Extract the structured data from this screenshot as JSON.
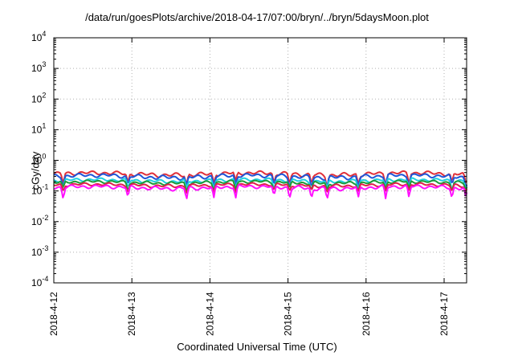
{
  "chart_data": {
    "type": "line",
    "title": "/data/run/goesPlots/archive/2018-04-17/07:00/bryn/../bryn/5daysMoon.plot",
    "xlabel": "Coordinated Universal Time (UTC)",
    "ylabel": "cGy/day",
    "yscale": "log",
    "ylim": [
      0.0001,
      10000
    ],
    "xlim": [
      "2018-04-12",
      "2018-04-17 07:00"
    ],
    "grid": true,
    "legend": "none",
    "x_ticks": [
      "2018-4-12",
      "2018-4-13",
      "2018-4-14",
      "2018-4-15",
      "2018-4-16",
      "2018-4-17"
    ],
    "y_ticks": [
      {
        "base": "10",
        "exp": "-4"
      },
      {
        "base": "10",
        "exp": "-3"
      },
      {
        "base": "10",
        "exp": "-2"
      },
      {
        "base": "10",
        "exp": "-1"
      },
      {
        "base": "10",
        "exp": "0"
      },
      {
        "base": "10",
        "exp": "1"
      },
      {
        "base": "10",
        "exp": "2"
      },
      {
        "base": "10",
        "exp": "3"
      },
      {
        "base": "10",
        "exp": "4"
      }
    ],
    "dip_days": [
      0.12,
      0.95,
      1.7,
      2.05,
      2.33,
      2.82,
      3.02,
      3.3,
      3.5,
      3.9,
      4.25,
      4.55,
      5.1,
      5.28
    ],
    "series": [
      {
        "color": "#e0303a",
        "baseline": 0.36,
        "wobble": 0.06,
        "dip_factor": 0.45
      },
      {
        "color": "#1f56d8",
        "baseline": 0.3,
        "wobble": 0.05,
        "dip_factor": 0.45
      },
      {
        "color": "#20d0e0",
        "baseline": 0.22,
        "wobble": 0.03,
        "dip_factor": 0.5
      },
      {
        "color": "#1e9a3a",
        "baseline": 0.19,
        "wobble": 0.025,
        "dip_factor": 0.55
      },
      {
        "color": "#e0204a",
        "baseline": 0.155,
        "wobble": 0.02,
        "dip_factor": 0.6
      },
      {
        "color": "#ff10ff",
        "baseline": 0.13,
        "wobble": 0.02,
        "dip_factor": 0.4
      }
    ]
  }
}
